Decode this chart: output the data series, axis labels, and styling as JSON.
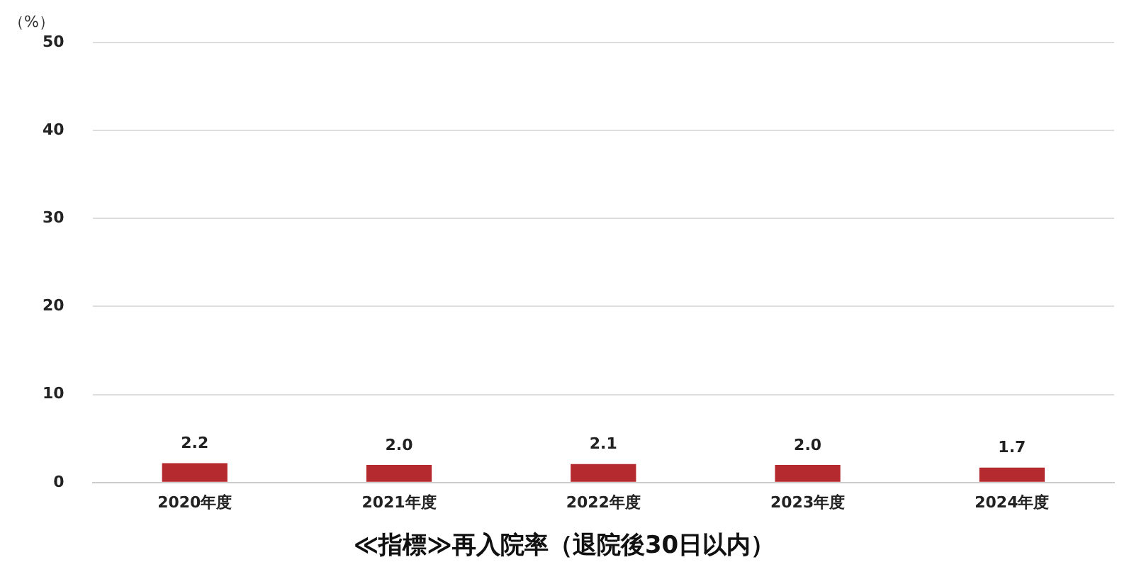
{
  "chart_data": {
    "type": "bar",
    "title": "≪指標≫再入院率（退院後30日以内）",
    "ylabel": "（%）",
    "categories": [
      "2020年度",
      "2021年度",
      "2022年度",
      "2023年度",
      "2024年度"
    ],
    "values": [
      2.2,
      2.0,
      2.1,
      2.0,
      1.7
    ],
    "color": "#b52a2e",
    "ylim": [
      0,
      50
    ],
    "yticks": [
      0,
      10,
      20,
      30,
      40,
      50
    ],
    "value_labels": [
      "2.2",
      "2.0",
      "2.1",
      "2.0",
      "1.7"
    ],
    "grid": "y",
    "legend": false
  }
}
